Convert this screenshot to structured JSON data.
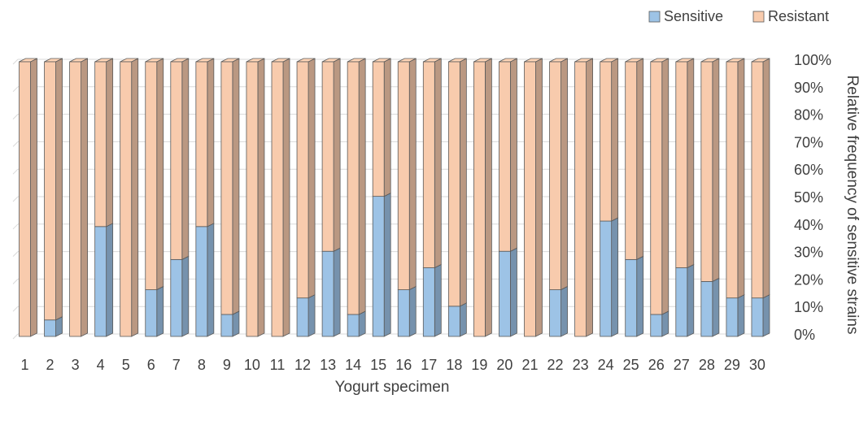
{
  "chart_data": {
    "type": "bar",
    "stacked": true,
    "percent_stacked": true,
    "three_d": true,
    "title": "",
    "xlabel": "Yogurt specimen",
    "ylabel": "Relative frequency of sensitive strains",
    "ylim": [
      0,
      100
    ],
    "yticks": [
      "0%",
      "10%",
      "20%",
      "30%",
      "40%",
      "50%",
      "60%",
      "70%",
      "80%",
      "90%",
      "100%"
    ],
    "y_axis_side": "right",
    "grid": true,
    "legend_position": "top-right",
    "categories": [
      "1",
      "2",
      "3",
      "4",
      "5",
      "6",
      "7",
      "8",
      "9",
      "10",
      "11",
      "12",
      "13",
      "14",
      "15",
      "16",
      "17",
      "18",
      "19",
      "20",
      "21",
      "22",
      "23",
      "24",
      "25",
      "26",
      "27",
      "28",
      "29",
      "30"
    ],
    "series": [
      {
        "name": "Sensitive",
        "color": "#9dc3e6",
        "values": [
          0,
          6,
          0,
          40,
          0,
          17,
          28,
          40,
          8,
          0,
          0,
          14,
          31,
          8,
          51,
          17,
          25,
          11,
          0,
          31,
          0,
          17,
          0,
          42,
          28,
          8,
          25,
          20,
          14,
          14
        ]
      },
      {
        "name": "Resistant",
        "color": "#f8cbad",
        "values": [
          100,
          94,
          100,
          60,
          100,
          83,
          72,
          60,
          92,
          100,
          100,
          86,
          69,
          92,
          49,
          83,
          75,
          89,
          100,
          69,
          100,
          83,
          100,
          58,
          72,
          92,
          75,
          80,
          86,
          86
        ]
      }
    ]
  }
}
